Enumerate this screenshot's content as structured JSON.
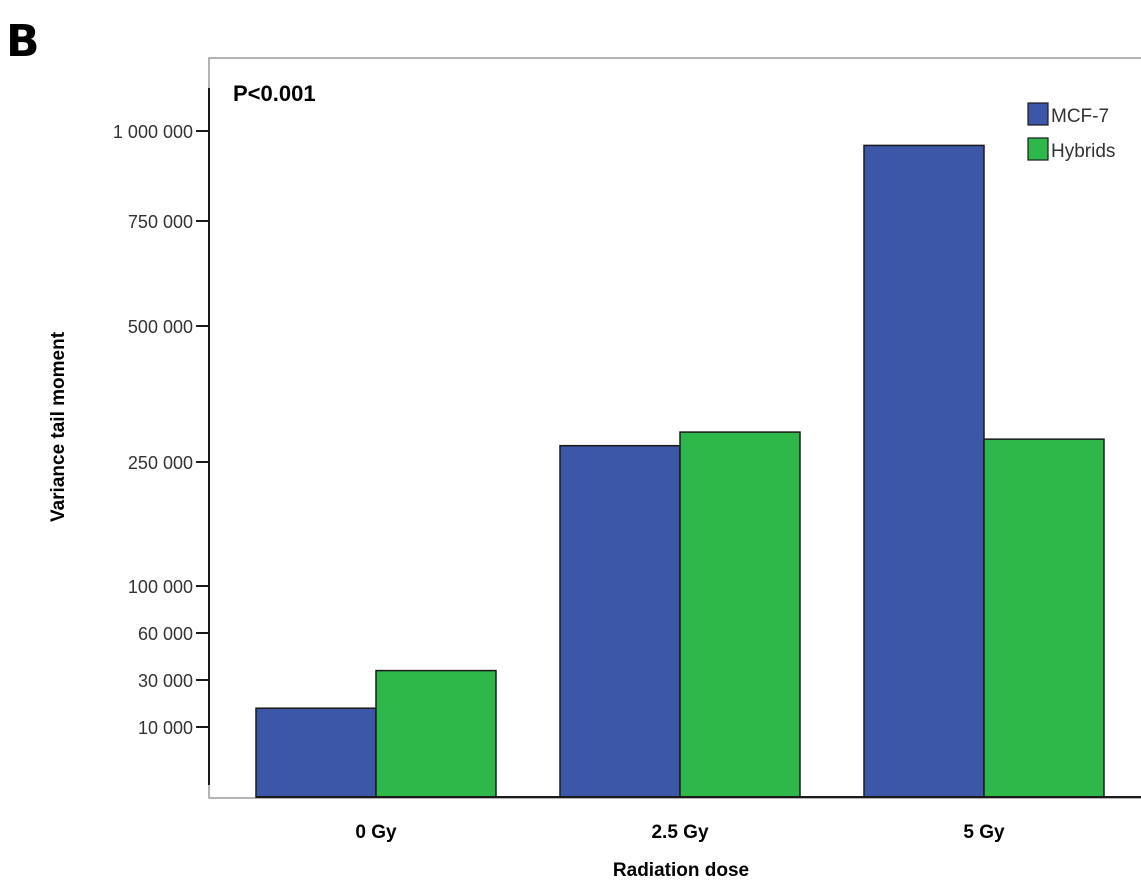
{
  "panel_label": "B",
  "annotation": "P<0.001",
  "colors": {
    "MCF-7": "#3c56a8",
    "Hybrids": "#2fb84a",
    "axis": "#1a1a1a",
    "bar_border": "#1a1a1a"
  },
  "chart_data": {
    "type": "bar",
    "categories": [
      "0 Gy",
      "2.5 Gy",
      "5 Gy"
    ],
    "series": [
      {
        "name": "MCF-7",
        "values": [
          18000,
          280000,
          960000
        ]
      },
      {
        "name": "Hybrids",
        "values": [
          36000,
          305000,
          292000
        ]
      }
    ],
    "xlabel": "Radiation dose",
    "ylabel": "Variance tail moment",
    "yscale": "nonlinear",
    "yticks": [
      10000,
      30000,
      60000,
      100000,
      250000,
      500000,
      750000,
      1000000
    ],
    "ytick_labels": [
      "10 000",
      "30 000",
      "60 000",
      "100 000",
      "250 000",
      "500 000",
      "750 000",
      "1 000 000"
    ],
    "legend": {
      "placement": "top-right",
      "entries": [
        "MCF-7",
        "Hybrids"
      ]
    },
    "grid": false
  }
}
